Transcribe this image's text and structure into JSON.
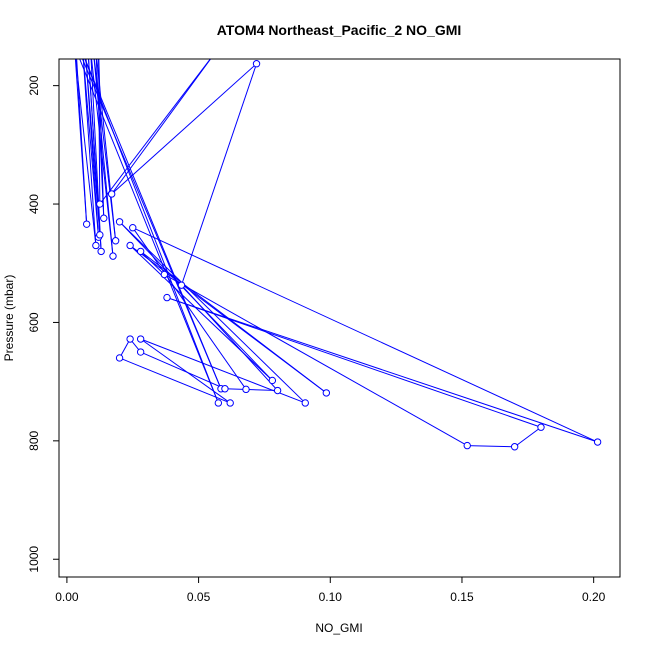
{
  "chart_data": {
    "type": "line",
    "title": "ATOM4 Northeast_Pacific_2 NO_GMI",
    "xlabel": "NO_GMI",
    "ylabel": "Pressure (mbar)",
    "xlim": [
      -0.003,
      0.21
    ],
    "ylim": [
      1030,
      155
    ],
    "y_reversed": true,
    "x_ticks": [
      0.0,
      0.05,
      0.1,
      0.15,
      0.2
    ],
    "x_tick_labels": [
      "0.00",
      "0.05",
      "0.10",
      "0.15",
      "0.20"
    ],
    "y_ticks": [
      200,
      400,
      600,
      800,
      1000
    ],
    "y_tick_labels": [
      "200",
      "400",
      "600",
      "800",
      "1000"
    ],
    "grid": false,
    "legend": "none",
    "series_color": "#0000ff",
    "point_style": "open-circle",
    "points": [
      {
        "x": 0.0045,
        "y": 140,
        "marker": false
      },
      {
        "x": 0.0585,
        "y": 712
      },
      {
        "x": 0.0055,
        "y": 140,
        "marker": false
      },
      {
        "x": 0.0575,
        "y": 736
      },
      {
        "x": 0.0035,
        "y": 140,
        "marker": false
      },
      {
        "x": 0.0075,
        "y": 434
      },
      {
        "x": 0.003,
        "y": 140,
        "marker": false
      },
      {
        "x": 0.011,
        "y": 470
      },
      {
        "x": 0.006,
        "y": 140,
        "marker": false
      },
      {
        "x": 0.012,
        "y": 456
      },
      {
        "x": 0.007,
        "y": 140,
        "marker": false
      },
      {
        "x": 0.0125,
        "y": 452
      },
      {
        "x": 0.008,
        "y": 140,
        "marker": false
      },
      {
        "x": 0.013,
        "y": 480
      },
      {
        "x": 0.009,
        "y": 140,
        "marker": false
      },
      {
        "x": 0.0175,
        "y": 488
      },
      {
        "x": 0.01,
        "y": 140,
        "marker": false
      },
      {
        "x": 0.0185,
        "y": 462
      },
      {
        "x": 0.011,
        "y": 140,
        "marker": false
      },
      {
        "x": 0.014,
        "y": 424
      },
      {
        "x": 0.012,
        "y": 140,
        "marker": false
      },
      {
        "x": 0.0125,
        "y": 400
      },
      {
        "x": 0.057,
        "y": 140,
        "marker": false
      },
      {
        "x": 0.017,
        "y": 383
      },
      {
        "x": 0.072,
        "y": 163
      },
      {
        "x": 0.0435,
        "y": 537
      },
      {
        "x": 0.08,
        "y": 715
      },
      {
        "x": 0.06,
        "y": 712
      },
      {
        "x": 0.028,
        "y": 650
      },
      {
        "x": 0.024,
        "y": 628
      },
      {
        "x": 0.02,
        "y": 660
      },
      {
        "x": 0.062,
        "y": 736
      },
      {
        "x": 0.028,
        "y": 628
      },
      {
        "x": 0.0905,
        "y": 736
      },
      {
        "x": 0.02,
        "y": 430
      },
      {
        "x": 0.078,
        "y": 698
      },
      {
        "x": 0.024,
        "y": 470
      },
      {
        "x": 0.0985,
        "y": 719
      },
      {
        "x": 0.028,
        "y": 480
      },
      {
        "x": 0.037,
        "y": 519
      },
      {
        "x": 0.152,
        "y": 808
      },
      {
        "x": 0.17,
        "y": 810
      },
      {
        "x": 0.18,
        "y": 777
      },
      {
        "x": 0.038,
        "y": 558
      },
      {
        "x": 0.2015,
        "y": 802
      },
      {
        "x": 0.025,
        "y": 440
      },
      {
        "x": 0.068,
        "y": 713
      }
    ]
  }
}
